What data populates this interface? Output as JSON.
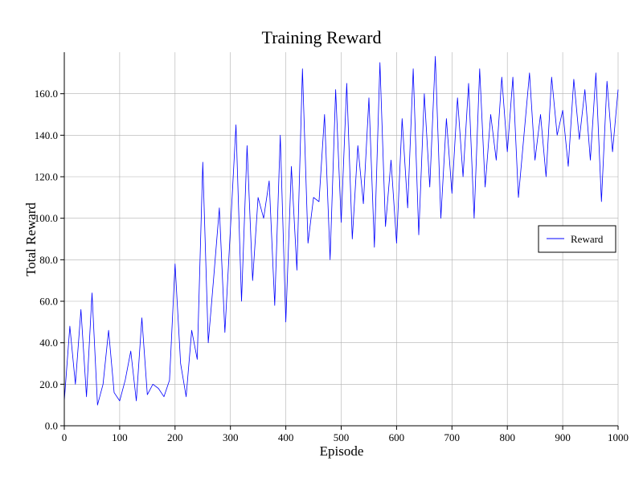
{
  "chart_data": {
    "type": "line",
    "title": "Training Reward",
    "xlabel": "Episode",
    "ylabel": "Total Reward",
    "xlim": [
      0,
      1000
    ],
    "ylim": [
      0,
      180
    ],
    "xticks": [
      0,
      100,
      200,
      300,
      400,
      500,
      600,
      700,
      800,
      900,
      1000
    ],
    "xtick_labels": [
      "0",
      "100",
      "200",
      "300",
      "400",
      "500",
      "600",
      "700",
      "800",
      "900",
      "1000"
    ],
    "yticks": [
      0,
      20,
      40,
      60,
      80,
      100,
      120,
      140,
      160
    ],
    "ytick_labels": [
      "0.0",
      "20.0",
      "40.0",
      "60.0",
      "80.0",
      "100.0",
      "120.0",
      "140.0",
      "160.0"
    ],
    "grid": true,
    "legend_position": "center-right",
    "x": [
      0,
      10,
      20,
      30,
      40,
      50,
      60,
      70,
      80,
      90,
      100,
      110,
      120,
      130,
      140,
      150,
      160,
      170,
      180,
      190,
      200,
      210,
      220,
      230,
      240,
      250,
      260,
      270,
      280,
      290,
      300,
      310,
      320,
      330,
      340,
      350,
      360,
      370,
      380,
      390,
      400,
      410,
      420,
      430,
      440,
      450,
      460,
      470,
      480,
      490,
      500,
      510,
      520,
      530,
      540,
      550,
      560,
      570,
      580,
      590,
      600,
      610,
      620,
      630,
      640,
      650,
      660,
      670,
      680,
      690,
      700,
      710,
      720,
      730,
      740,
      750,
      760,
      770,
      780,
      790,
      800,
      810,
      820,
      830,
      840,
      850,
      860,
      870,
      880,
      890,
      900,
      910,
      920,
      930,
      940,
      950,
      960,
      970,
      980,
      990,
      1000
    ],
    "series": [
      {
        "name": "Reward",
        "color": "#0000ff",
        "values": [
          12,
          48,
          20,
          56,
          14,
          64,
          10,
          20,
          46,
          16,
          12,
          22,
          36,
          12,
          52,
          15,
          20,
          18,
          14,
          22,
          78,
          30,
          14,
          46,
          32,
          127,
          40,
          72,
          105,
          45,
          95,
          145,
          60,
          135,
          70,
          110,
          100,
          118,
          58,
          140,
          50,
          125,
          75,
          172,
          88,
          110,
          108,
          150,
          80,
          162,
          98,
          165,
          90,
          135,
          107,
          158,
          86,
          175,
          96,
          128,
          88,
          148,
          105,
          172,
          92,
          160,
          115,
          178,
          100,
          148,
          112,
          158,
          120,
          165,
          100,
          172,
          115,
          150,
          128,
          168,
          132,
          168,
          110,
          140,
          170,
          128,
          150,
          120,
          168,
          140,
          152,
          125,
          167,
          138,
          162,
          128,
          170,
          108,
          166,
          132,
          162
        ]
      }
    ]
  }
}
